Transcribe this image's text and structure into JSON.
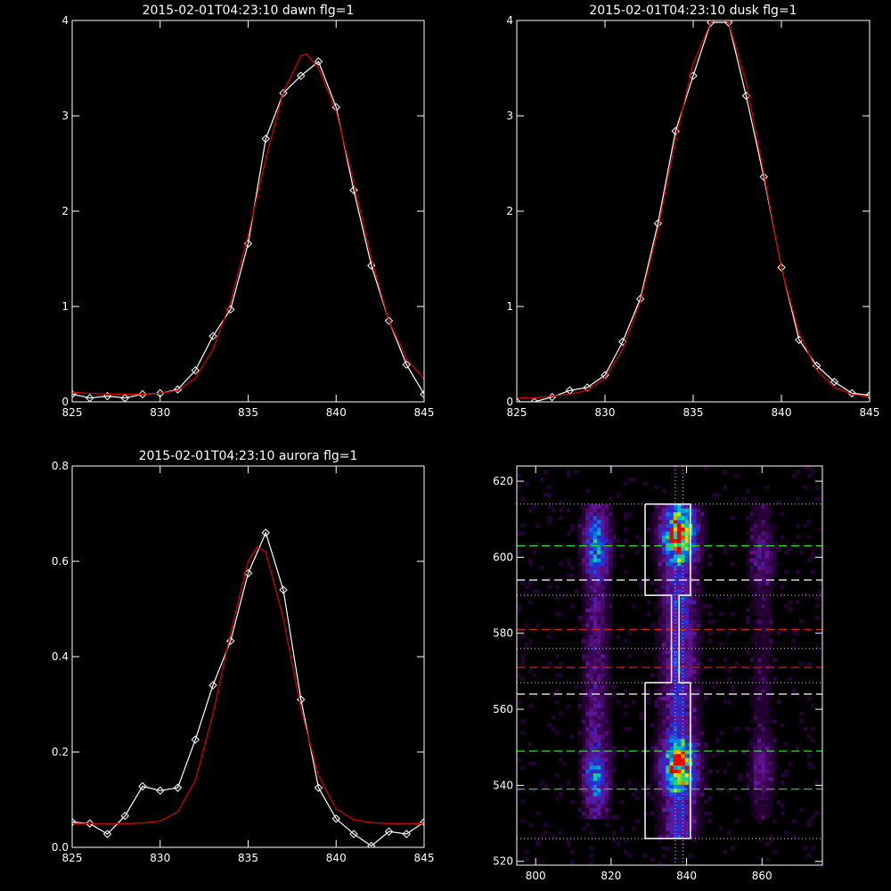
{
  "chart_data": [
    {
      "type": "line",
      "title": "2015-02-01T04:23:10 dawn flg=1",
      "xlim": [
        825,
        845
      ],
      "ylim": [
        0,
        4
      ],
      "xticks": [
        825,
        830,
        835,
        840,
        845
      ],
      "yticks": [
        0,
        1,
        2,
        3,
        4
      ],
      "grid": false,
      "series": [
        {
          "color": "#ffffff",
          "marker": "diamond",
          "x": [
            825,
            826,
            827,
            828,
            829,
            830,
            831,
            832,
            833,
            834,
            835,
            836,
            837,
            838,
            839,
            840,
            841,
            842,
            843,
            844,
            845
          ],
          "y": [
            0.08,
            0.04,
            0.06,
            0.04,
            0.08,
            0.09,
            0.13,
            0.33,
            0.69,
            0.97,
            1.66,
            2.76,
            3.24,
            3.42,
            3.57,
            3.09,
            2.22,
            1.43,
            0.85,
            0.39,
            0.08
          ]
        },
        {
          "color": "#cc0000",
          "marker": "none",
          "x": [
            825,
            826,
            827,
            828,
            829,
            830,
            831,
            832,
            833,
            834,
            835,
            836,
            837,
            838,
            838.3,
            839,
            840,
            841,
            842,
            843,
            844,
            845
          ],
          "y": [
            0.1,
            0.09,
            0.08,
            0.08,
            0.08,
            0.09,
            0.12,
            0.25,
            0.55,
            1.05,
            1.75,
            2.55,
            3.25,
            3.63,
            3.65,
            3.5,
            3.05,
            2.3,
            1.5,
            0.85,
            0.45,
            0.24
          ]
        }
      ]
    },
    {
      "type": "line",
      "title": "2015-02-01T04:23:10 dusk flg=1",
      "xlim": [
        825,
        845
      ],
      "ylim": [
        0,
        4
      ],
      "xticks": [
        825,
        830,
        835,
        840,
        845
      ],
      "yticks": [
        0,
        1,
        2,
        3,
        4
      ],
      "grid": false,
      "series": [
        {
          "color": "#ffffff",
          "marker": "diamond",
          "x": [
            825,
            826,
            827,
            828,
            829,
            830,
            831,
            832,
            833,
            834,
            835,
            836,
            837,
            838,
            839,
            840,
            841,
            842,
            843,
            844,
            845
          ],
          "y": [
            0.0,
            0.0,
            0.05,
            0.12,
            0.15,
            0.28,
            0.63,
            1.08,
            1.87,
            2.84,
            3.42,
            3.98,
            3.98,
            3.21,
            2.36,
            1.41,
            0.65,
            0.38,
            0.21,
            0.09,
            0.07
          ]
        },
        {
          "color": "#cc0000",
          "marker": "none",
          "x": [
            825,
            826,
            827,
            828,
            829,
            830,
            831,
            832,
            833,
            834,
            835,
            836,
            836.5,
            837,
            838,
            839,
            840,
            841,
            842,
            843,
            844,
            845
          ],
          "y": [
            0.04,
            0.04,
            0.06,
            0.08,
            0.12,
            0.25,
            0.55,
            1.05,
            1.8,
            2.75,
            3.55,
            3.98,
            4.02,
            3.98,
            3.35,
            2.4,
            1.4,
            0.72,
            0.33,
            0.15,
            0.08,
            0.05
          ]
        }
      ]
    },
    {
      "type": "line",
      "title": "2015-02-01T04:23:10 aurora flg=1",
      "xlim": [
        825,
        845
      ],
      "ylim": [
        0,
        0.8
      ],
      "xticks": [
        825,
        830,
        835,
        840,
        845
      ],
      "yticks": [
        0.0,
        0.2,
        0.4,
        0.6,
        0.8
      ],
      "ytick_labels": [
        "0.0",
        "0.2",
        "0.4",
        "0.6",
        "0.8"
      ],
      "grid": false,
      "series": [
        {
          "color": "#ffffff",
          "marker": "diamond",
          "x": [
            825,
            826,
            827,
            828,
            829,
            830,
            831,
            832,
            833,
            834,
            835,
            836,
            837,
            838,
            839,
            840,
            841,
            842,
            843,
            844,
            845
          ],
          "y": [
            0.053,
            0.05,
            0.028,
            0.066,
            0.128,
            0.119,
            0.125,
            0.226,
            0.34,
            0.433,
            0.575,
            0.66,
            0.54,
            0.31,
            0.125,
            0.06,
            0.028,
            0.003,
            0.033,
            0.028,
            0.053
          ]
        },
        {
          "color": "#cc0000",
          "marker": "none",
          "x": [
            825,
            826,
            827,
            828,
            829,
            830,
            831,
            832,
            833,
            834,
            835,
            835.5,
            836,
            837,
            838,
            839,
            840,
            841,
            842,
            843,
            844,
            845
          ],
          "y": [
            0.05,
            0.05,
            0.05,
            0.05,
            0.051,
            0.055,
            0.075,
            0.14,
            0.28,
            0.45,
            0.6,
            0.63,
            0.62,
            0.48,
            0.29,
            0.15,
            0.08,
            0.058,
            0.052,
            0.05,
            0.05,
            0.05
          ]
        }
      ]
    },
    {
      "type": "heatmap",
      "xlim": [
        795,
        876
      ],
      "ylim": [
        519,
        624
      ],
      "xticks": [
        800,
        820,
        840,
        860
      ],
      "yticks": [
        520,
        540,
        560,
        580,
        600,
        620
      ],
      "grid": false,
      "emission_columns": [
        {
          "x": 816,
          "width": 6,
          "y_range": [
            531,
            614
          ],
          "peaks": [
            [
              603,
              0.55
            ],
            [
              543,
              0.5
            ]
          ]
        },
        {
          "x": 838,
          "width": 8,
          "y_range": [
            526,
            614
          ],
          "peaks": [
            [
              606,
              1.0
            ],
            [
              545,
              0.95
            ]
          ]
        },
        {
          "x": 860,
          "width": 6,
          "y_range": [
            531,
            614
          ],
          "peaks": [
            [
              600,
              0.2
            ],
            [
              545,
              0.18
            ]
          ]
        }
      ],
      "outlines": [
        {
          "color": "#ffffff",
          "points": [
            [
              829,
              614
            ],
            [
              841,
              614
            ],
            [
              841,
              590
            ],
            [
              838,
              590
            ],
            [
              838,
              567
            ],
            [
              841,
              567
            ],
            [
              841,
              526
            ],
            [
              829,
              526
            ],
            [
              829,
              567
            ],
            [
              836,
              567
            ],
            [
              836,
              590
            ],
            [
              829,
              590
            ],
            [
              829,
              614
            ]
          ]
        }
      ],
      "hlines": [
        {
          "y": 614,
          "color": "#bbbbbb",
          "style": "dotted"
        },
        {
          "y": 603,
          "color": "#33dd33",
          "style": "dashed"
        },
        {
          "y": 594,
          "color": "#ffffff",
          "style": "dashed"
        },
        {
          "y": 590,
          "color": "#bbbbbb",
          "style": "dotted"
        },
        {
          "y": 581,
          "color": "#cc2222",
          "style": "dashed"
        },
        {
          "y": 576,
          "color": "#bbbbbb",
          "style": "dotted"
        },
        {
          "y": 571,
          "color": "#cc2222",
          "style": "dashed"
        },
        {
          "y": 567,
          "color": "#bbbbbb",
          "style": "dotted"
        },
        {
          "y": 564,
          "color": "#ffffff",
          "style": "dashed"
        },
        {
          "y": 549,
          "color": "#33dd33",
          "style": "dashed"
        },
        {
          "y": 539,
          "color": "#33dd33",
          "style": "dashed"
        },
        {
          "y": 526,
          "color": "#bbbbbb",
          "style": "dotted"
        }
      ],
      "vlines": [
        {
          "x": 837,
          "color": "#ff77ff",
          "style": "dotted"
        },
        {
          "x": 839,
          "color": "#ff77ff",
          "style": "dotted"
        }
      ]
    }
  ]
}
